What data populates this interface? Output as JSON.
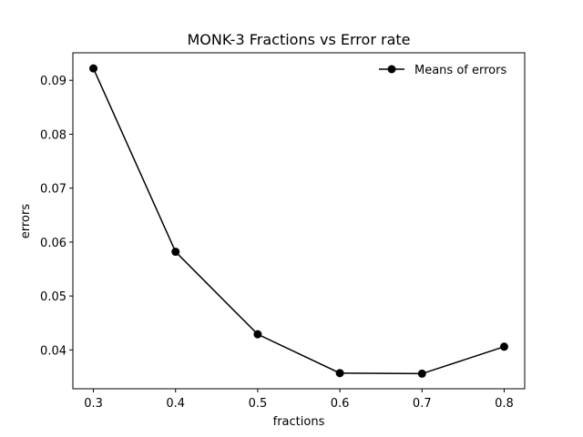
{
  "chart_data": {
    "type": "line",
    "title": "MONK-3 Fractions vs Error rate",
    "xlabel": "fractions",
    "ylabel": "errors",
    "x": [
      0.3,
      0.4,
      0.5,
      0.6,
      0.7,
      0.8
    ],
    "series": [
      {
        "name": "Means of errors",
        "values": [
          0.0922,
          0.0582,
          0.0429,
          0.0357,
          0.0356,
          0.0406
        ],
        "color": "#000000",
        "marker": "circle"
      }
    ],
    "xticks": [
      "0.3",
      "0.4",
      "0.5",
      "0.6",
      "0.7",
      "0.8"
    ],
    "yticks": [
      "0.04",
      "0.05",
      "0.06",
      "0.07",
      "0.08",
      "0.09"
    ],
    "xlim": [
      0.275,
      0.825
    ],
    "ylim": [
      0.0328,
      0.0951
    ],
    "grid": false,
    "legend_position": "top-right"
  }
}
